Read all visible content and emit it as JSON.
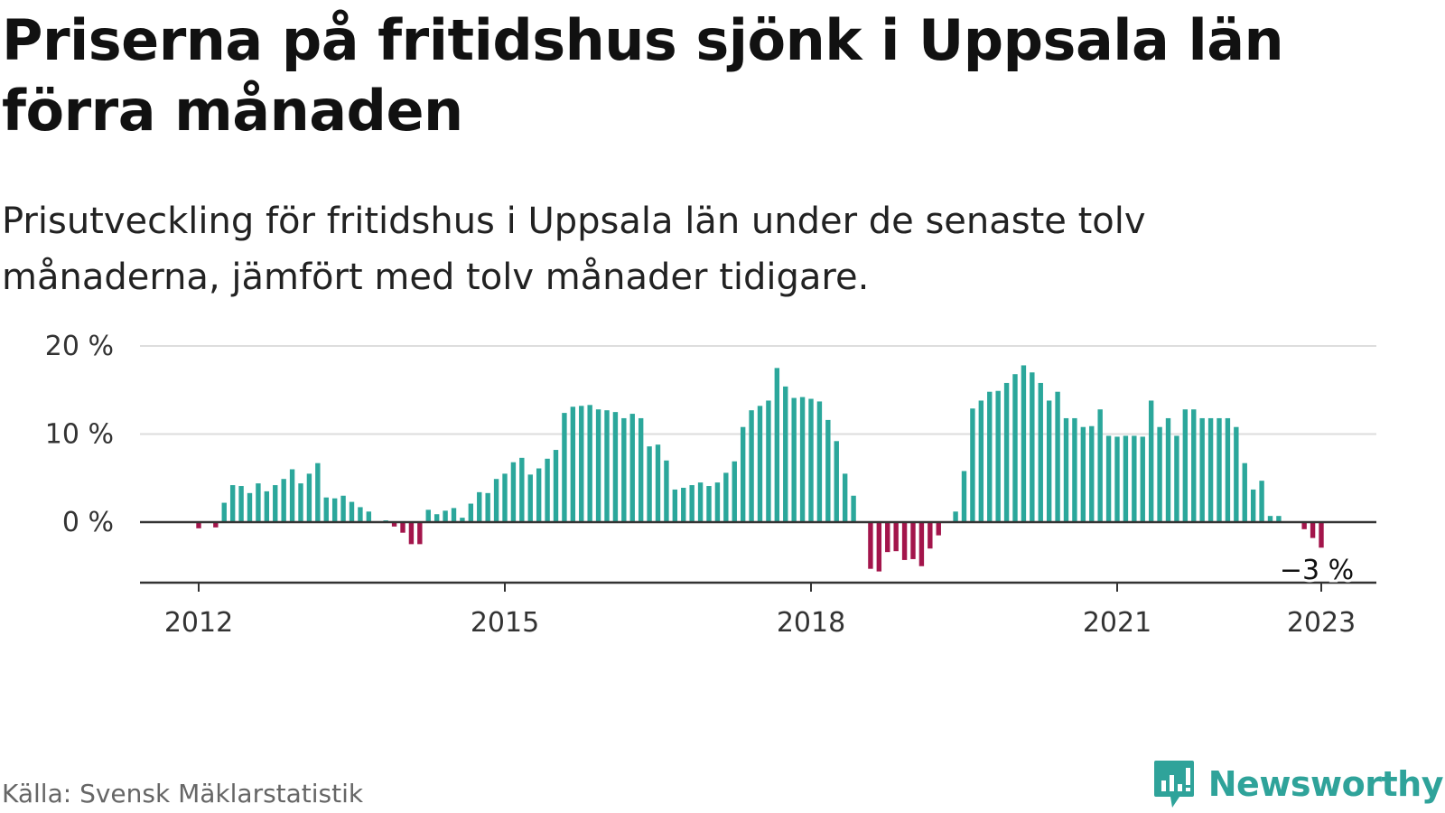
{
  "title": "Priserna på fritidshus sjönk i Uppsala län förra månaden",
  "subtitle": "Prisutveckling för fritidshus i Uppsala län under de senaste tolv månaderna, jämfört med tolv månader tidigare.",
  "source": "Källa: Svensk Mäklarstatistik",
  "brand": {
    "name": "Newsworthy",
    "icon": "newsworthy-logo-icon"
  },
  "colors": {
    "positive": "#2ba79b",
    "negative": "#a3154b",
    "axis": "#333333",
    "grid": "#dddddd"
  },
  "chart_data": {
    "type": "bar",
    "x_axis": "monthly, Jan 2012 – Jan 2023",
    "x_ticks": [
      {
        "value": 2012,
        "label": "2012"
      },
      {
        "value": 2015,
        "label": "2015"
      },
      {
        "value": 2018,
        "label": "2018"
      },
      {
        "value": 2021,
        "label": "2021"
      },
      {
        "value": 2023,
        "label": "2023"
      }
    ],
    "y_ticks": [
      {
        "value": 0,
        "label": "0 %"
      },
      {
        "value": 10,
        "label": "10 %"
      },
      {
        "value": 20,
        "label": "20 %"
      }
    ],
    "ylim": [
      -7,
      20
    ],
    "grid": true,
    "highlight_label": "−3 %",
    "start": "2012-01",
    "unit": "%",
    "values": [
      -0.7,
      0,
      -0.6,
      2.2,
      4.2,
      4.1,
      3.3,
      4.4,
      3.5,
      4.2,
      4.9,
      6.0,
      4.4,
      5.5,
      6.7,
      2.8,
      2.7,
      3.0,
      2.3,
      1.7,
      1.2,
      0,
      0.2,
      -0.5,
      -1.2,
      -2.5,
      -2.5,
      1.4,
      0.9,
      1.3,
      1.6,
      0.5,
      2.1,
      3.4,
      3.3,
      4.9,
      5.5,
      6.8,
      7.3,
      5.4,
      6.1,
      7.2,
      8.2,
      12.4,
      13.1,
      13.2,
      13.3,
      12.8,
      12.7,
      12.5,
      11.8,
      12.3,
      11.8,
      8.6,
      8.8,
      7.0,
      3.7,
      3.9,
      4.2,
      4.5,
      4.1,
      4.5,
      5.6,
      6.9,
      10.8,
      12.7,
      13.2,
      13.8,
      17.5,
      15.4,
      14.1,
      14.2,
      14.0,
      13.7,
      11.6,
      9.2,
      5.5,
      3.0,
      0,
      -5.3,
      -5.6,
      -3.4,
      -3.3,
      -4.3,
      -4.2,
      -5.0,
      -3.0,
      -1.5,
      0,
      1.2,
      5.8,
      12.9,
      13.8,
      14.8,
      14.9,
      15.8,
      16.8,
      17.8,
      17.0,
      15.8,
      13.8,
      14.8,
      11.8,
      11.8,
      10.8,
      10.9,
      12.8,
      9.8,
      9.7,
      9.8,
      9.8,
      9.7,
      13.8,
      10.8,
      11.8,
      9.8,
      12.8,
      12.8,
      11.8,
      11.8,
      11.8,
      11.8,
      10.8,
      6.7,
      3.7,
      4.7,
      0.7,
      0.7,
      0,
      0,
      -0.8,
      -1.8,
      -2.9
    ]
  }
}
